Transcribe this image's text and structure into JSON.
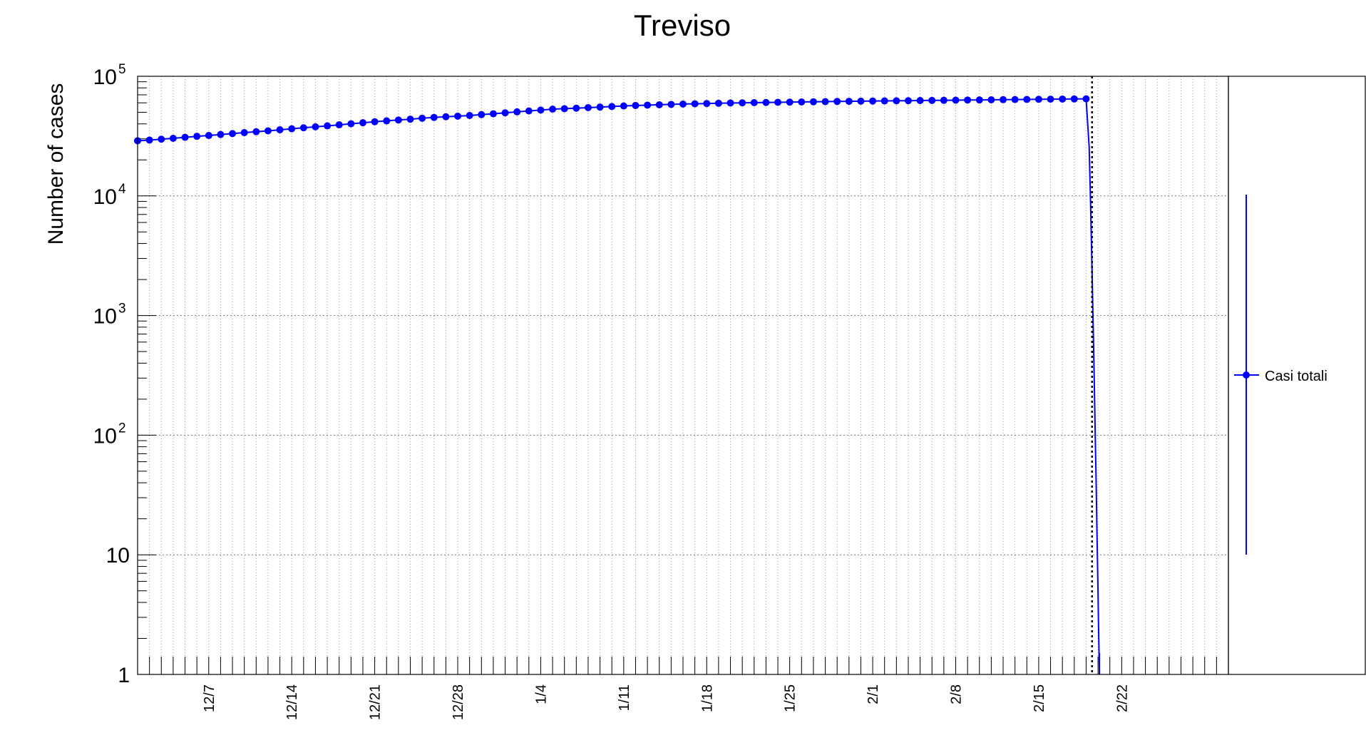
{
  "chart_data": {
    "type": "line",
    "title": "Treviso",
    "xlabel": "",
    "ylabel": "Number of cases",
    "y_scale": "log",
    "ylim": [
      1,
      100000
    ],
    "xlim": [
      "2020-12-01",
      "2021-03-03"
    ],
    "grid": true,
    "legend_position": "right",
    "y_tick_labels": [
      {
        "value": 1,
        "label": "1"
      },
      {
        "value": 10,
        "label": "10"
      },
      {
        "value": 100,
        "label": "10",
        "exp": "2"
      },
      {
        "value": 1000,
        "label": "10",
        "exp": "3"
      },
      {
        "value": 10000,
        "label": "10",
        "exp": "4"
      },
      {
        "value": 100000,
        "label": "10",
        "exp": "5"
      }
    ],
    "x_tick_labels": [
      {
        "date": "2020-12-07",
        "label": "12/7"
      },
      {
        "date": "2020-12-14",
        "label": "12/14"
      },
      {
        "date": "2020-12-21",
        "label": "12/21"
      },
      {
        "date": "2020-12-28",
        "label": "12/28"
      },
      {
        "date": "2021-01-04",
        "label": "1/4"
      },
      {
        "date": "2021-01-11",
        "label": "1/11"
      },
      {
        "date": "2021-01-18",
        "label": "1/18"
      },
      {
        "date": "2021-01-25",
        "label": "1/25"
      },
      {
        "date": "2021-02-01",
        "label": "2/1"
      },
      {
        "date": "2021-02-08",
        "label": "2/8"
      },
      {
        "date": "2021-02-15",
        "label": "2/15"
      },
      {
        "date": "2021-02-22",
        "label": "2/22"
      }
    ],
    "vertical_marker": {
      "date": "2021-02-19T12:00",
      "style": "dotted"
    },
    "series": [
      {
        "name": "Casi totali",
        "color": "#0000ff",
        "start_date": "2020-12-01",
        "values": [
          28900,
          29300,
          29800,
          30300,
          30900,
          31500,
          32000,
          32600,
          33200,
          33800,
          34400,
          35000,
          35700,
          36400,
          37100,
          37800,
          38500,
          39300,
          40100,
          40900,
          41700,
          42400,
          43100,
          43800,
          44600,
          45300,
          45900,
          46400,
          47000,
          47800,
          48600,
          49500,
          50400,
          51300,
          52200,
          53100,
          53600,
          54100,
          54700,
          55300,
          55900,
          56500,
          57000,
          57400,
          57800,
          58200,
          58600,
          58900,
          59200,
          59500,
          59800,
          60000,
          60200,
          60400,
          60600,
          60800,
          61000,
          61200,
          61400,
          61600,
          61800,
          61950,
          62100,
          62250,
          62400,
          62550,
          62700,
          62850,
          63000,
          63150,
          63300,
          63450,
          63600,
          63750,
          63900,
          64050,
          64200,
          64350,
          64500,
          64650,
          64800
        ]
      }
    ],
    "drop_to": 1,
    "drop_end_date": "2021-02-20"
  },
  "legend": {
    "label": "Casi totali"
  }
}
